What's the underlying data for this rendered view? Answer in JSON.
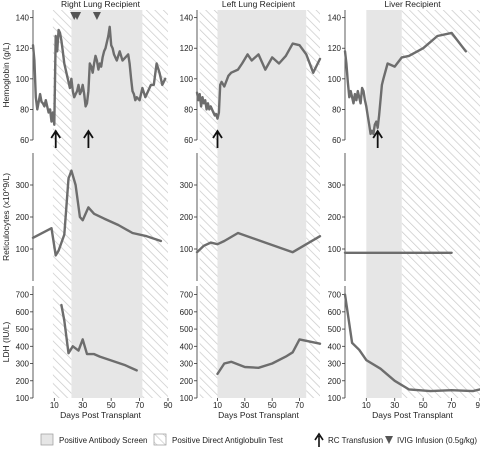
{
  "colors": {
    "series": "#6d6d6d",
    "antibody_shade": "#e6e6e6",
    "hatch": "#c8c8c8",
    "arrow": "#111111",
    "triangle": "#555555"
  },
  "legend": {
    "items": [
      {
        "key": "antibody",
        "label": "Positive Antibody Screen",
        "icon": "gray-square-icon"
      },
      {
        "key": "dat",
        "label": "Positive Direct Antiglobulin Test",
        "icon": "hatched-square-icon"
      },
      {
        "key": "rc",
        "label": "RC Transfusion",
        "icon": "up-arrow-icon"
      },
      {
        "key": "ivig",
        "label": "IVIG Infusion (0.5g/kg)",
        "icon": "down-triangle-icon"
      }
    ]
  },
  "chart_data": [
    {
      "type": "line",
      "title": "Right Lung Recipient",
      "xlabel": "Days Post Transplant",
      "x_ticks": [
        10,
        30,
        50,
        70,
        90
      ],
      "xlim": [
        -5,
        90
      ],
      "shaded": {
        "antibody": [
          22,
          72
        ],
        "dat_hatch": [
          [
            9,
            22
          ],
          [
            72,
            90
          ]
        ]
      },
      "rc_transfusion_days": [
        11,
        34
      ],
      "ivig_days": [
        24,
        26,
        40
      ],
      "rows": [
        {
          "ylabel": "Hemoglobin (g/L)",
          "ylim": [
            60,
            145
          ],
          "yticks": [
            60,
            80,
            100,
            120,
            140
          ],
          "x": [
            -5,
            -4,
            -3,
            -2,
            0,
            1,
            2,
            3,
            4,
            5,
            6,
            7,
            8,
            9,
            10,
            11,
            12,
            13,
            14,
            15,
            16,
            17,
            18,
            19,
            20,
            21,
            22,
            23,
            24,
            25,
            26,
            27,
            28,
            29,
            30,
            31,
            32,
            33,
            34,
            35,
            36,
            37,
            38,
            39,
            40,
            41,
            42,
            43,
            44,
            45,
            46,
            47,
            48,
            49,
            50,
            51,
            52,
            54,
            56,
            58,
            60,
            62,
            63,
            64,
            65,
            66,
            67,
            68,
            70,
            72,
            74,
            76,
            78,
            80,
            82,
            84,
            86,
            88
          ],
          "values": [
            122,
            112,
            88,
            80,
            90,
            85,
            84,
            82,
            86,
            82,
            78,
            80,
            72,
            78,
            70,
            128,
            118,
            132,
            130,
            125,
            118,
            110,
            106,
            102,
            98,
            94,
            100,
            92,
            88,
            90,
            92,
            96,
            90,
            92,
            96,
            90,
            82,
            84,
            92,
            110,
            108,
            104,
            110,
            115,
            112,
            106,
            110,
            108,
            114,
            118,
            120,
            124,
            128,
            134,
            122,
            120,
            116,
            112,
            118,
            112,
            114,
            116,
            110,
            100,
            92,
            90,
            86,
            88,
            86,
            94,
            88,
            92,
            96,
            96,
            110,
            104,
            96,
            100
          ]
        },
        {
          "ylabel": "Reticulocytes (x10^9/L)",
          "ylim": [
            0,
            400
          ],
          "yticks": [
            100,
            200,
            300
          ],
          "x": [
            -5,
            8,
            11,
            13,
            17,
            20,
            22,
            25,
            28,
            30,
            34,
            38,
            45,
            55,
            65,
            75,
            85
          ],
          "values": [
            135,
            165,
            80,
            95,
            145,
            320,
            345,
            300,
            200,
            190,
            230,
            210,
            195,
            175,
            150,
            140,
            125
          ]
        },
        {
          "ylabel": "LDH (IU/L)",
          "ylim": [
            100,
            750
          ],
          "yticks": [
            100,
            200,
            300,
            400,
            500,
            600,
            700
          ],
          "x": [
            15,
            17,
            20,
            23,
            27,
            30,
            33,
            38,
            42,
            60,
            68
          ],
          "values": [
            640,
            550,
            360,
            400,
            375,
            440,
            355,
            355,
            340,
            290,
            260
          ]
        }
      ]
    },
    {
      "type": "line",
      "title": "Left Lung Recipient",
      "xlabel": "Days Post Transplant",
      "x_ticks": [
        10,
        30,
        50,
        70
      ],
      "xlim": [
        -5,
        85
      ],
      "shaded": {
        "antibody": [
          10,
          75
        ],
        "dat_hatch": [
          [
            -3,
            10
          ],
          [
            75,
            85
          ]
        ]
      },
      "rc_transfusion_days": [
        10
      ],
      "ivig_days": [],
      "rows": [
        {
          "ylabel": "Hemoglobin (g/L)",
          "ylim": [
            60,
            145
          ],
          "yticks": [
            60,
            80,
            100,
            120,
            140
          ],
          "x": [
            -5,
            -4,
            -3,
            -2,
            -1,
            0,
            1,
            2,
            3,
            4,
            5,
            6,
            7,
            8,
            9,
            10,
            11,
            12,
            13,
            15,
            18,
            20,
            25,
            28,
            32,
            35,
            40,
            45,
            50,
            55,
            60,
            65,
            70,
            75,
            80,
            85
          ],
          "values": [
            91,
            86,
            90,
            82,
            88,
            84,
            86,
            80,
            84,
            80,
            82,
            80,
            78,
            76,
            77,
            74,
            78,
            96,
            98,
            95,
            102,
            104,
            106,
            110,
            116,
            112,
            116,
            106,
            114,
            110,
            115,
            123,
            122,
            116,
            104,
            113
          ]
        },
        {
          "ylabel": "Reticulocytes (x10^9/L)",
          "ylim": [
            0,
            400
          ],
          "yticks": [
            100,
            200,
            300
          ],
          "x": [
            -5,
            0,
            5,
            10,
            15,
            25,
            45,
            65,
            85
          ],
          "values": [
            90,
            110,
            120,
            115,
            125,
            150,
            120,
            90,
            140
          ]
        },
        {
          "ylabel": "LDH (IU/L)",
          "ylim": [
            100,
            750
          ],
          "yticks": [
            100,
            200,
            300,
            400,
            500,
            600,
            700
          ],
          "x": [
            10,
            15,
            20,
            25,
            30,
            40,
            50,
            60,
            65,
            70,
            85
          ],
          "values": [
            240,
            300,
            310,
            295,
            280,
            275,
            300,
            340,
            365,
            440,
            415
          ]
        }
      ]
    },
    {
      "type": "line",
      "title": "Liver Recipient",
      "xlabel": "Days Post Transplant",
      "x_ticks": [
        10,
        30,
        50,
        70,
        90
      ],
      "xlim": [
        -5,
        90
      ],
      "shaded": {
        "antibody": [
          10,
          35
        ],
        "dat_hatch": [
          [
            35,
            90
          ]
        ]
      },
      "rc_transfusion_days": [
        18
      ],
      "ivig_days": [],
      "rows": [
        {
          "ylabel": "Hemoglobin (g/L)",
          "ylim": [
            60,
            145
          ],
          "yticks": [
            60,
            80,
            100,
            120,
            140
          ],
          "x": [
            -5,
            -4,
            -3,
            -2,
            -1,
            0,
            1,
            2,
            3,
            4,
            5,
            6,
            7,
            8,
            9,
            10,
            11,
            12,
            13,
            14,
            15,
            16,
            17,
            18,
            19,
            20,
            21,
            22,
            25,
            30,
            35,
            40,
            50,
            60,
            70,
            80
          ],
          "values": [
            118,
            110,
            98,
            88,
            92,
            88,
            84,
            90,
            86,
            92,
            88,
            84,
            94,
            92,
            86,
            82,
            76,
            70,
            64,
            66,
            64,
            70,
            72,
            68,
            76,
            86,
            96,
            100,
            110,
            108,
            114,
            115,
            120,
            128,
            130,
            118
          ]
        },
        {
          "ylabel": "Reticulocytes (x10^9/L)",
          "ylim": [
            0,
            400
          ],
          "yticks": [
            100,
            200,
            300
          ],
          "x": [
            -5,
            70
          ],
          "values": [
            88,
            88
          ]
        },
        {
          "ylabel": "LDH (IU/L)",
          "ylim": [
            100,
            750
          ],
          "yticks": [
            100,
            200,
            300,
            400,
            500,
            600,
            700
          ],
          "x": [
            -5,
            0,
            5,
            10,
            20,
            30,
            40,
            55,
            70,
            85,
            90
          ],
          "values": [
            700,
            420,
            380,
            320,
            270,
            200,
            150,
            140,
            145,
            140,
            150
          ]
        }
      ]
    }
  ]
}
